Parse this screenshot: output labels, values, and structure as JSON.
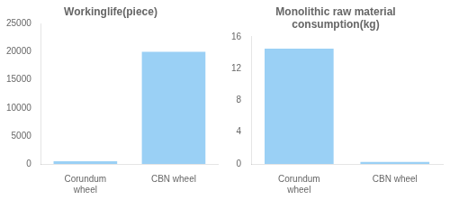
{
  "chart_data": [
    {
      "type": "bar",
      "title": "Workinglife(piece)",
      "categories": [
        "Corundum\nwheel",
        "CBN wheel"
      ],
      "values": [
        500,
        20000
      ],
      "ylim": [
        0,
        25000
      ],
      "yticks": [
        0,
        5000,
        10000,
        15000,
        20000,
        25000
      ],
      "grid": false
    },
    {
      "type": "bar",
      "title": "Monolithic raw material\nconsumption(kg)",
      "categories": [
        "Corundum\nwheel",
        "CBN wheel"
      ],
      "values": [
        14.5,
        0.25
      ],
      "ylim": [
        0,
        16
      ],
      "yticks": [
        0,
        4,
        8,
        12,
        16
      ],
      "grid": false
    }
  ]
}
